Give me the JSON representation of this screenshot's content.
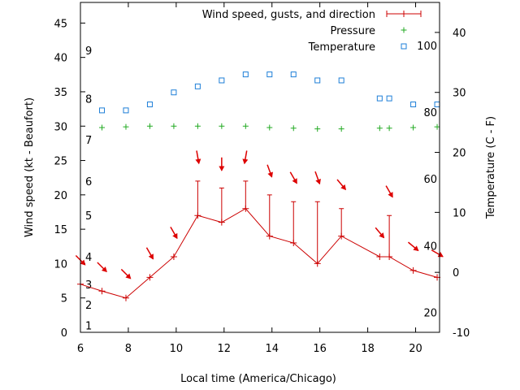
{
  "chart_data": {
    "type": "line",
    "xlabel": "Local time (America/Chicago)",
    "ylabel": "Wind speed (kt - Beaufort)",
    "y2label": "Temperature (C - F)",
    "xlim": [
      6,
      21
    ],
    "ylim": [
      0,
      48
    ],
    "y2lim": [
      -10,
      45
    ],
    "x_ticks": [
      6,
      8,
      10,
      12,
      14,
      16,
      18,
      20
    ],
    "y_ticks": [
      0,
      5,
      10,
      15,
      20,
      25,
      30,
      35,
      40,
      45
    ],
    "y2_ticks": [
      -10,
      0,
      10,
      20,
      30,
      40
    ],
    "beaufort_labels": [
      {
        "label": "1",
        "value": 1.0
      },
      {
        "label": "2",
        "value": 4.0
      },
      {
        "label": "3",
        "value": 7.0
      },
      {
        "label": "4",
        "value": 11.0
      },
      {
        "label": "5",
        "value": 17.0
      },
      {
        "label": "6",
        "value": 22.0
      },
      {
        "label": "7",
        "value": 28.0
      },
      {
        "label": "8",
        "value": 34.0
      },
      {
        "label": "9",
        "value": 41.0
      }
    ],
    "fahrenheit_labels": [
      {
        "label": "20",
        "value": -6.7
      },
      {
        "label": "40",
        "value": 4.4
      },
      {
        "label": "60",
        "value": 15.6
      },
      {
        "label": "80",
        "value": 26.7
      },
      {
        "label": "100",
        "value": 37.8
      }
    ],
    "legend": [
      {
        "label": "Wind speed, gusts, and direction",
        "color": "#cc0000",
        "marker": "line-plus"
      },
      {
        "label": "Pressure",
        "color": "#22aa22",
        "marker": "plus"
      },
      {
        "label": "Temperature",
        "color": "#1e7fd8",
        "marker": "square"
      }
    ],
    "series": [
      {
        "name": "Wind speed, gusts, and direction",
        "color": "#cc0000",
        "x": [
          6.0,
          6.9,
          7.9,
          8.9,
          9.9,
          10.9,
          11.9,
          12.9,
          13.9,
          14.9,
          15.9,
          16.9,
          18.5,
          18.9,
          19.9,
          20.9
        ],
        "values": [
          7,
          6,
          5,
          8,
          11,
          17,
          16,
          18,
          14,
          13,
          10,
          14,
          11,
          11,
          9,
          8
        ],
        "gusts": [
          null,
          null,
          null,
          null,
          null,
          22,
          21,
          22,
          20,
          19,
          19,
          18,
          null,
          17,
          null,
          null
        ],
        "direction_deg": [
          315,
          315,
          315,
          330,
          330,
          350,
          0,
          10,
          340,
          330,
          340,
          320,
          320,
          330,
          310,
          300
        ]
      },
      {
        "name": "Pressure",
        "color": "#22aa22",
        "x": [
          6.9,
          7.9,
          8.9,
          9.9,
          10.9,
          11.9,
          12.9,
          13.9,
          14.9,
          15.9,
          16.9,
          18.5,
          18.9,
          19.9,
          20.9
        ],
        "values": [
          29.8,
          29.9,
          30.0,
          30.0,
          30.0,
          30.0,
          30.0,
          29.8,
          29.7,
          29.6,
          29.6,
          29.7,
          29.7,
          29.8,
          29.9
        ]
      },
      {
        "name": "Temperature",
        "color": "#1e7fd8",
        "x": [
          6.9,
          7.9,
          8.9,
          9.9,
          10.9,
          11.9,
          12.9,
          13.9,
          14.9,
          15.9,
          16.9,
          18.5,
          18.9,
          19.9,
          20.9
        ],
        "values": [
          27,
          27,
          28,
          30,
          31,
          32,
          33,
          33,
          33,
          32,
          32,
          29,
          29,
          28,
          28
        ]
      }
    ]
  }
}
